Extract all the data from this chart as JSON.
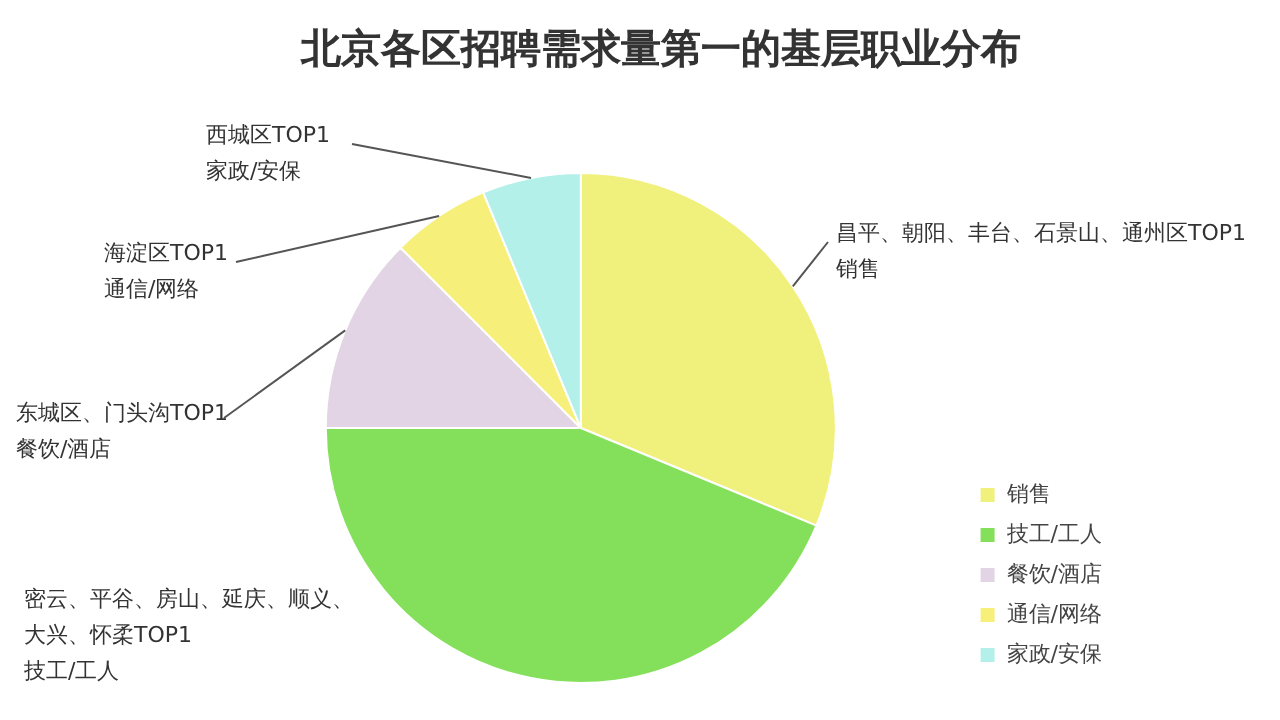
{
  "chart_data": {
    "type": "pie",
    "title": "北京各区招聘需求量第一的基层职业分布",
    "categories": [
      "销售",
      "技工/工人",
      "餐饮/酒店",
      "通信/网络",
      "家政/安保"
    ],
    "values": [
      31.25,
      43.75,
      12.5,
      6.25,
      6.25
    ],
    "colors": [
      "#f0f07c",
      "#84e05a",
      "#e2d4e4",
      "#f6f07a",
      "#b4f0ea"
    ],
    "legend": "bottom right",
    "annotations": [
      "昌平、朝阳、丰台、石景山、通州区TOP1\n销售",
      "密云、平谷、房山、延庆、顺义、大兴、怀柔TOP1\n技工/工人",
      "东城区、门头沟TOP1\n餐饮/酒店",
      "海淀区TOP1\n通信/网络",
      "西城区TOP1\n家政/安保"
    ]
  }
}
